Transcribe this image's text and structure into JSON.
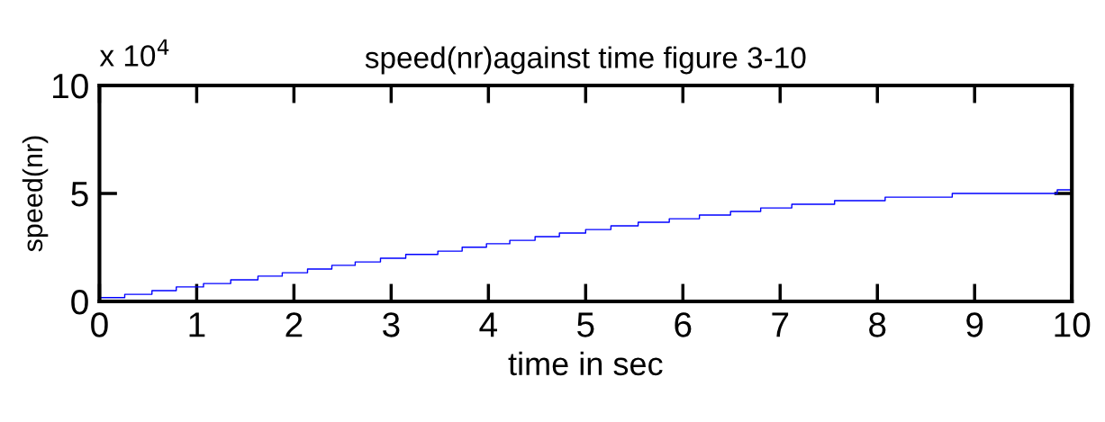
{
  "chart_data": {
    "type": "step",
    "title": "speed(nr)against time figure 3-10",
    "xlabel": "time in sec",
    "ylabel": "speed(nr)",
    "annotations": [
      "x 10$^{4}$"
    ],
    "x": [
      0,
      0.26,
      0.54,
      0.79,
      1.07,
      1.35,
      1.63,
      1.88,
      2.14,
      2.39,
      2.63,
      2.89,
      3.15,
      3.48,
      3.73,
      3.98,
      4.22,
      4.48,
      4.73,
      5.0,
      5.26,
      5.54,
      5.86,
      6.17,
      6.49,
      6.8,
      7.12,
      7.56,
      8.08,
      8.77,
      9.85,
      10
    ],
    "series": [
      {
        "color": "#0000ff",
        "values": [
          0.18,
          0.33,
          0.5,
          0.67,
          0.83,
          1.0,
          1.17,
          1.33,
          1.5,
          1.67,
          1.83,
          2.0,
          2.18,
          2.33,
          2.51,
          2.67,
          2.83,
          3.0,
          3.17,
          3.33,
          3.5,
          3.67,
          3.83,
          4.0,
          4.17,
          4.33,
          4.5,
          4.67,
          4.83,
          5.0,
          5.17,
          5.17
        ]
      }
    ],
    "xlim": [
      0,
      10
    ],
    "ylim": [
      0,
      10
    ],
    "xticks": [
      0,
      1,
      2,
      3,
      4,
      5,
      6,
      7,
      8,
      9,
      10
    ],
    "yticks": [
      0,
      5,
      10
    ],
    "grid": false,
    "legend": false
  }
}
